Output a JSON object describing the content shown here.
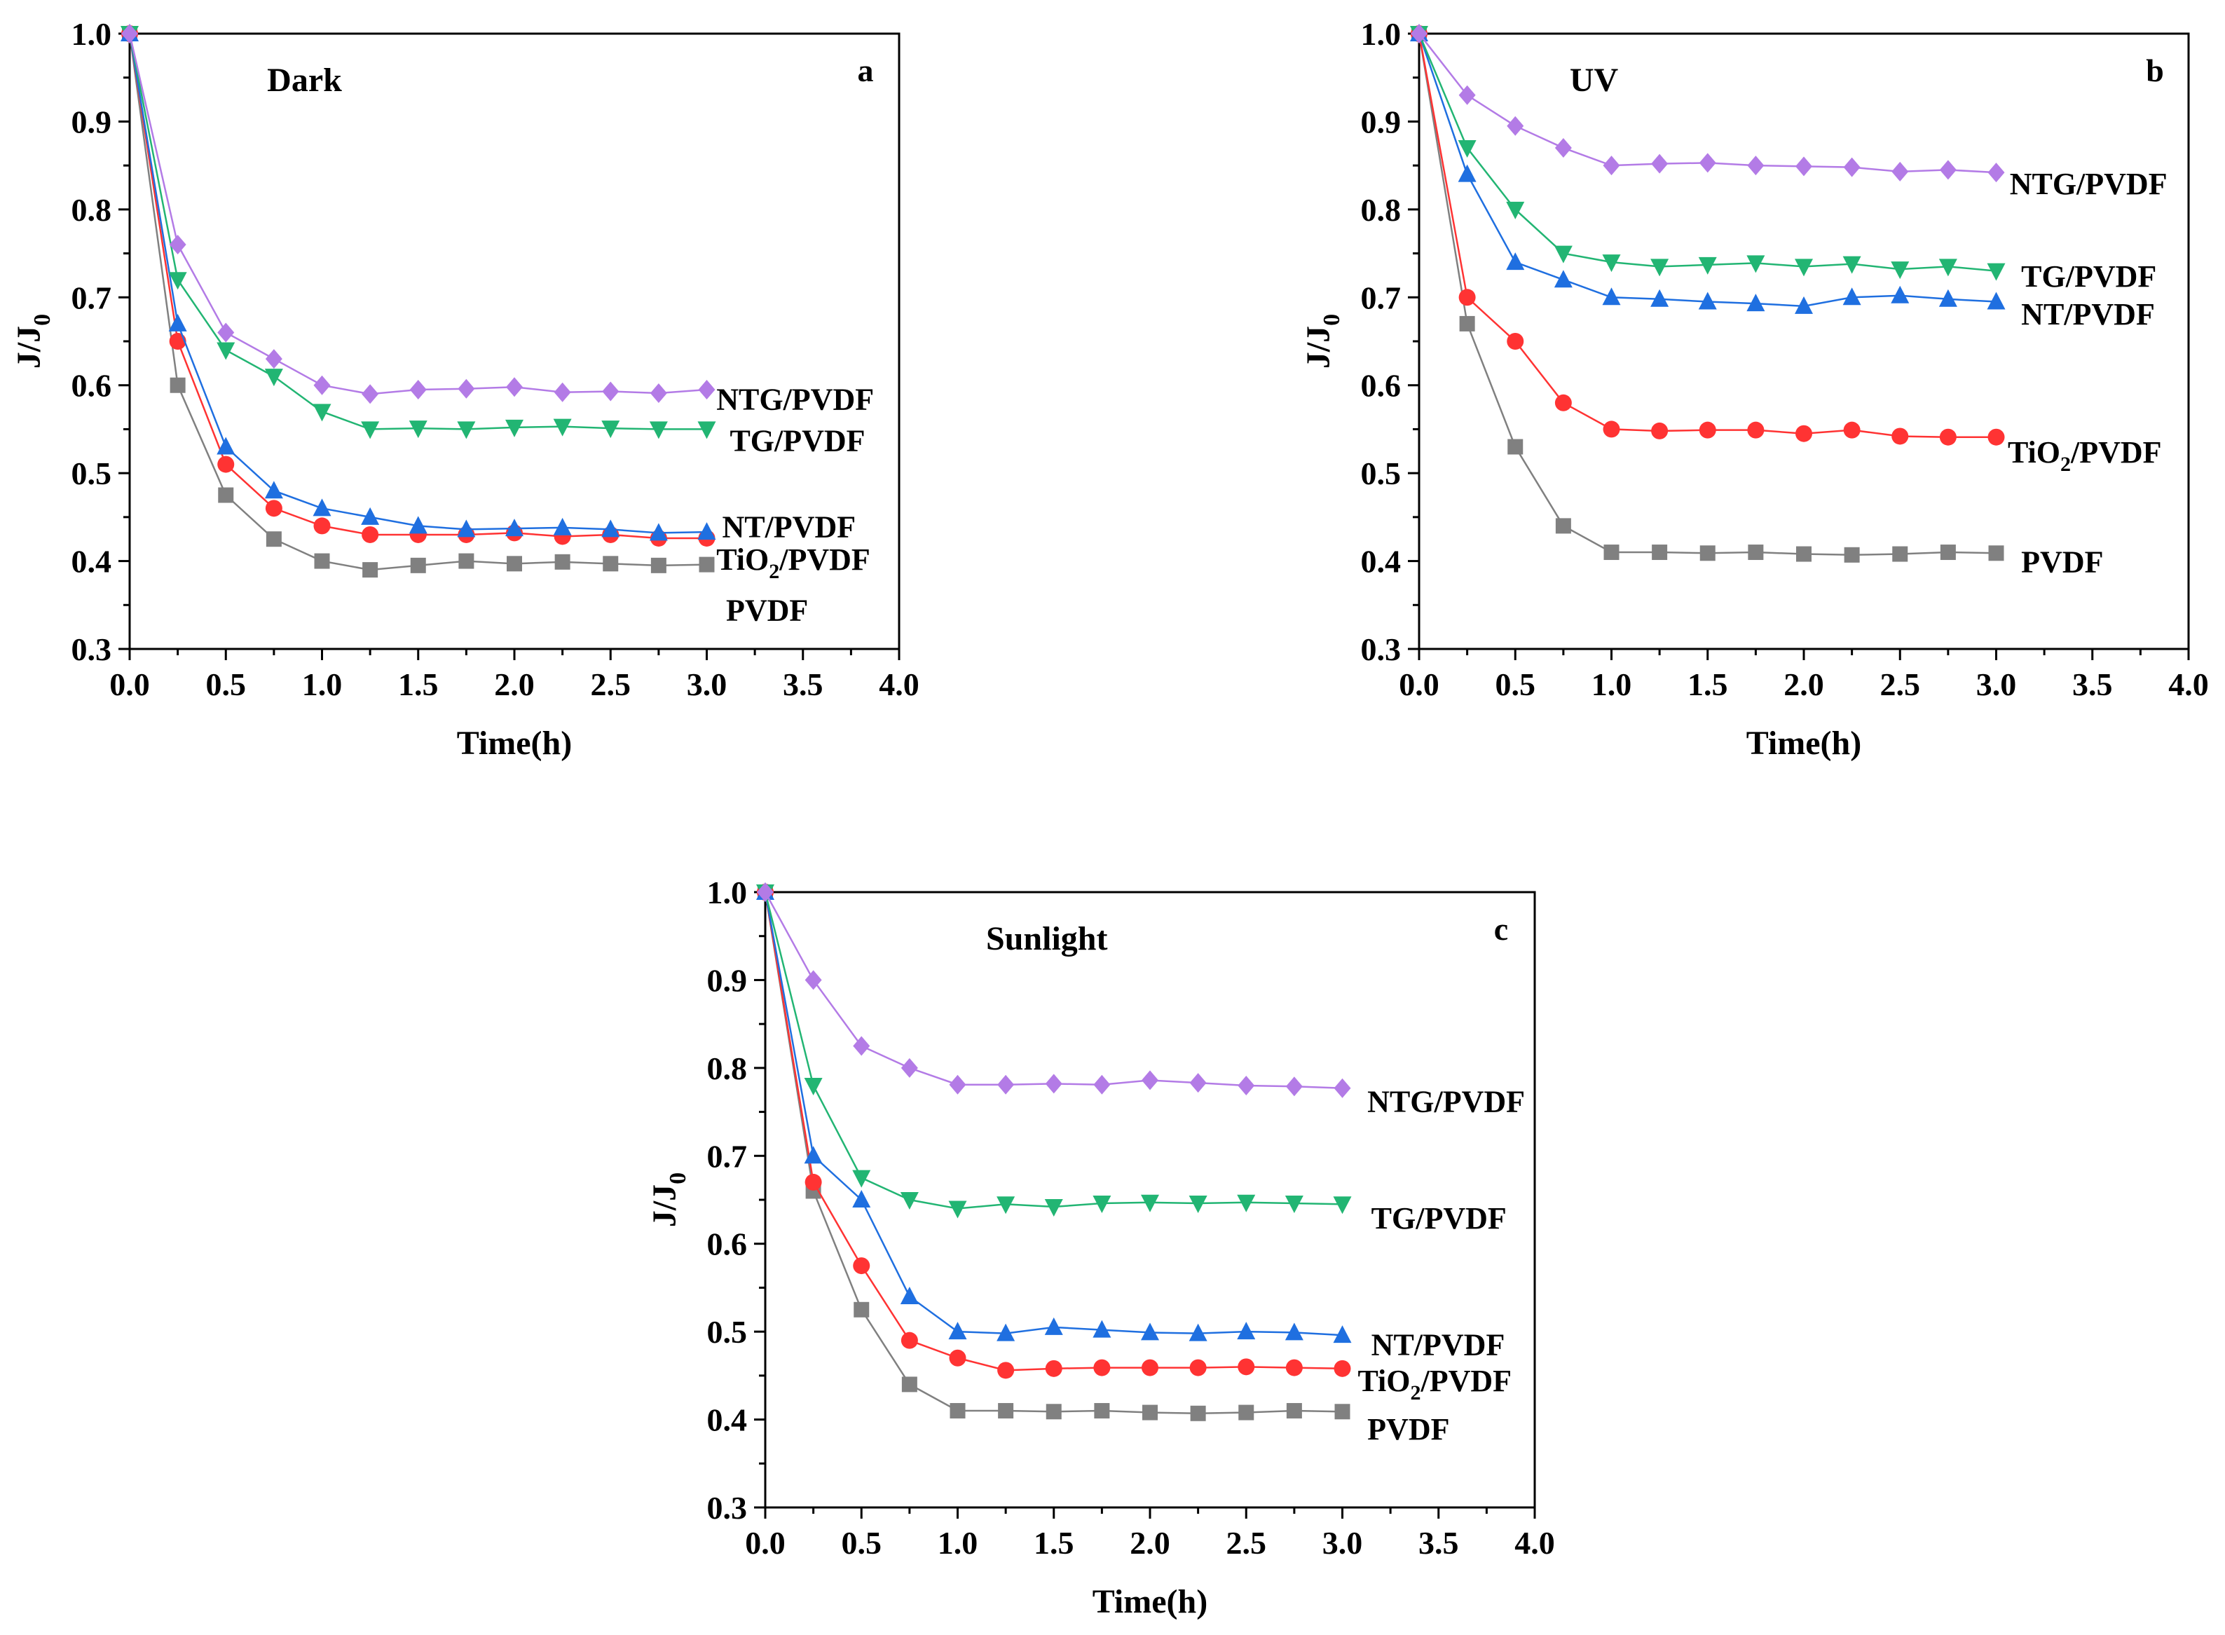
{
  "chart_data": [
    {
      "type": "line",
      "panel_letter": "a",
      "title": "Dark",
      "xlabel": "Time(h)",
      "ylabel_main": "J/J",
      "ylabel_sub": "0",
      "xlim": [
        0,
        4.0
      ],
      "ylim": [
        0.3,
        1.0
      ],
      "xticks": [
        "0.0",
        "0.5",
        "1.0",
        "1.5",
        "2.0",
        "2.5",
        "3.0",
        "3.5",
        "4.0"
      ],
      "yticks": [
        "0.3",
        "0.4",
        "0.5",
        "0.6",
        "0.7",
        "0.8",
        "0.9",
        "1.0"
      ],
      "x": [
        0,
        0.25,
        0.5,
        0.75,
        1.0,
        1.25,
        1.5,
        1.75,
        2.0,
        2.25,
        2.5,
        2.75,
        3.0
      ],
      "series": [
        {
          "name": "PVDF",
          "label_main": "PVDF",
          "label_sub": "",
          "label_tail": "",
          "label_at": [
            3.1,
            0.345
          ],
          "color": "#808080",
          "marker": "square",
          "values": [
            1.0,
            0.6,
            0.475,
            0.425,
            0.4,
            0.39,
            0.395,
            0.4,
            0.397,
            0.399,
            0.397,
            0.395,
            0.396
          ]
        },
        {
          "name": "TiO2/PVDF",
          "label_main": "TiO",
          "label_sub": "2",
          "label_tail": "/PVDF",
          "label_at": [
            3.05,
            0.403
          ],
          "color": "#ff3333",
          "marker": "circle",
          "values": [
            1.0,
            0.65,
            0.51,
            0.46,
            0.44,
            0.43,
            0.43,
            0.43,
            0.432,
            0.428,
            0.43,
            0.426,
            0.426
          ]
        },
        {
          "name": "NT/PVDF",
          "label_main": "NT/PVDF",
          "label_sub": "",
          "label_tail": "",
          "label_at": [
            3.08,
            0.44
          ],
          "color": "#1f6fe0",
          "marker": "triangle-up",
          "values": [
            1.0,
            0.67,
            0.53,
            0.48,
            0.46,
            0.45,
            0.44,
            0.436,
            0.437,
            0.438,
            0.436,
            0.432,
            0.433
          ]
        },
        {
          "name": "TG/PVDF",
          "label_main": "TG/PVDF",
          "label_sub": "",
          "label_tail": "",
          "label_at": [
            3.12,
            0.538
          ],
          "color": "#22b573",
          "marker": "triangle-down",
          "values": [
            1.0,
            0.72,
            0.64,
            0.61,
            0.57,
            0.55,
            0.551,
            0.55,
            0.552,
            0.553,
            0.551,
            0.55,
            0.55
          ]
        },
        {
          "name": "NTG/PVDF",
          "label_main": "NTG/PVDF",
          "label_sub": "",
          "label_tail": "",
          "label_at": [
            3.05,
            0.585
          ],
          "color": "#b37be6",
          "marker": "diamond",
          "values": [
            1.0,
            0.76,
            0.66,
            0.63,
            0.6,
            0.59,
            0.595,
            0.596,
            0.598,
            0.592,
            0.593,
            0.591,
            0.595
          ]
        }
      ]
    },
    {
      "type": "line",
      "panel_letter": "b",
      "title": "UV",
      "xlabel": "Time(h)",
      "ylabel_main": "J/J",
      "ylabel_sub": "0",
      "xlim": [
        0,
        4.0
      ],
      "ylim": [
        0.3,
        1.0
      ],
      "xticks": [
        "0.0",
        "0.5",
        "1.0",
        "1.5",
        "2.0",
        "2.5",
        "3.0",
        "3.5",
        "4.0"
      ],
      "yticks": [
        "0.3",
        "0.4",
        "0.5",
        "0.6",
        "0.7",
        "0.8",
        "0.9",
        "1.0"
      ],
      "x": [
        0,
        0.25,
        0.5,
        0.75,
        1.0,
        1.25,
        1.5,
        1.75,
        2.0,
        2.25,
        2.5,
        2.75,
        3.0
      ],
      "series": [
        {
          "name": "PVDF",
          "label_main": "PVDF",
          "label_sub": "",
          "label_tail": "",
          "label_at": [
            3.13,
            0.4
          ],
          "color": "#808080",
          "marker": "square",
          "values": [
            1.0,
            0.67,
            0.53,
            0.44,
            0.41,
            0.41,
            0.409,
            0.41,
            0.408,
            0.407,
            0.408,
            0.41,
            0.409
          ]
        },
        {
          "name": "TiO2/PVDF",
          "label_main": "TiO",
          "label_sub": "2",
          "label_tail": "/PVDF",
          "label_at": [
            3.06,
            0.525
          ],
          "color": "#ff3333",
          "marker": "circle",
          "values": [
            1.0,
            0.7,
            0.65,
            0.58,
            0.55,
            0.548,
            0.549,
            0.549,
            0.545,
            0.549,
            0.542,
            0.541,
            0.541
          ]
        },
        {
          "name": "NT/PVDF",
          "label_main": "NT/PVDF",
          "label_sub": "",
          "label_tail": "",
          "label_at": [
            3.13,
            0.682
          ],
          "color": "#1f6fe0",
          "marker": "triangle-up",
          "values": [
            1.0,
            0.84,
            0.74,
            0.72,
            0.7,
            0.698,
            0.695,
            0.693,
            0.69,
            0.7,
            0.702,
            0.698,
            0.695
          ]
        },
        {
          "name": "TG/PVDF",
          "label_main": "TG/PVDF",
          "label_sub": "",
          "label_tail": "",
          "label_at": [
            3.13,
            0.725
          ],
          "color": "#22b573",
          "marker": "triangle-down",
          "values": [
            1.0,
            0.87,
            0.8,
            0.75,
            0.74,
            0.735,
            0.737,
            0.739,
            0.735,
            0.738,
            0.732,
            0.735,
            0.73
          ]
        },
        {
          "name": "NTG/PVDF",
          "label_main": "NTG/PVDF",
          "label_sub": "",
          "label_tail": "",
          "label_at": [
            3.07,
            0.83
          ],
          "color": "#b37be6",
          "marker": "diamond",
          "values": [
            1.0,
            0.93,
            0.895,
            0.87,
            0.85,
            0.852,
            0.853,
            0.85,
            0.849,
            0.848,
            0.843,
            0.845,
            0.842
          ]
        }
      ]
    },
    {
      "type": "line",
      "panel_letter": "c",
      "title": "Sunlight",
      "xlabel": "Time(h)",
      "ylabel_main": "J/J",
      "ylabel_sub": "0",
      "xlim": [
        0,
        4.0
      ],
      "ylim": [
        0.3,
        1.0
      ],
      "xticks": [
        "0.0",
        "0.5",
        "1.0",
        "1.5",
        "2.0",
        "2.5",
        "3.0",
        "3.5",
        "4.0"
      ],
      "yticks": [
        "0.3",
        "0.4",
        "0.5",
        "0.6",
        "0.7",
        "0.8",
        "0.9",
        "1.0"
      ],
      "x": [
        0,
        0.25,
        0.5,
        0.75,
        1.0,
        1.25,
        1.5,
        1.75,
        2.0,
        2.25,
        2.5,
        2.75,
        3.0
      ],
      "series": [
        {
          "name": "PVDF",
          "label_main": "PVDF",
          "label_sub": "",
          "label_tail": "",
          "label_at": [
            3.13,
            0.39
          ],
          "color": "#808080",
          "marker": "square",
          "values": [
            1.0,
            0.66,
            0.525,
            0.44,
            0.41,
            0.41,
            0.409,
            0.41,
            0.408,
            0.407,
            0.408,
            0.41,
            0.409
          ]
        },
        {
          "name": "TiO2/PVDF",
          "label_main": "TiO",
          "label_sub": "2",
          "label_tail": "/PVDF",
          "label_at": [
            3.08,
            0.445
          ],
          "color": "#ff3333",
          "marker": "circle",
          "values": [
            1.0,
            0.67,
            0.575,
            0.49,
            0.47,
            0.456,
            0.458,
            0.459,
            0.459,
            0.459,
            0.46,
            0.459,
            0.458
          ]
        },
        {
          "name": "NT/PVDF",
          "label_main": "NT/PVDF",
          "label_sub": "",
          "label_tail": "",
          "label_at": [
            3.15,
            0.486
          ],
          "color": "#1f6fe0",
          "marker": "triangle-up",
          "values": [
            1.0,
            0.7,
            0.65,
            0.54,
            0.5,
            0.498,
            0.505,
            0.502,
            0.499,
            0.498,
            0.5,
            0.499,
            0.496
          ]
        },
        {
          "name": "TG/PVDF",
          "label_main": "TG/PVDF",
          "label_sub": "",
          "label_tail": "",
          "label_at": [
            3.15,
            0.63
          ],
          "color": "#22b573",
          "marker": "triangle-down",
          "values": [
            1.0,
            0.78,
            0.675,
            0.65,
            0.64,
            0.645,
            0.642,
            0.646,
            0.647,
            0.646,
            0.647,
            0.646,
            0.645
          ]
        },
        {
          "name": "NTG/PVDF",
          "label_main": "NTG/PVDF",
          "label_sub": "",
          "label_tail": "",
          "label_at": [
            3.13,
            0.763
          ],
          "color": "#b37be6",
          "marker": "diamond",
          "values": [
            1.0,
            0.9,
            0.825,
            0.8,
            0.781,
            0.781,
            0.782,
            0.781,
            0.786,
            0.783,
            0.78,
            0.779,
            0.777
          ]
        }
      ]
    }
  ]
}
